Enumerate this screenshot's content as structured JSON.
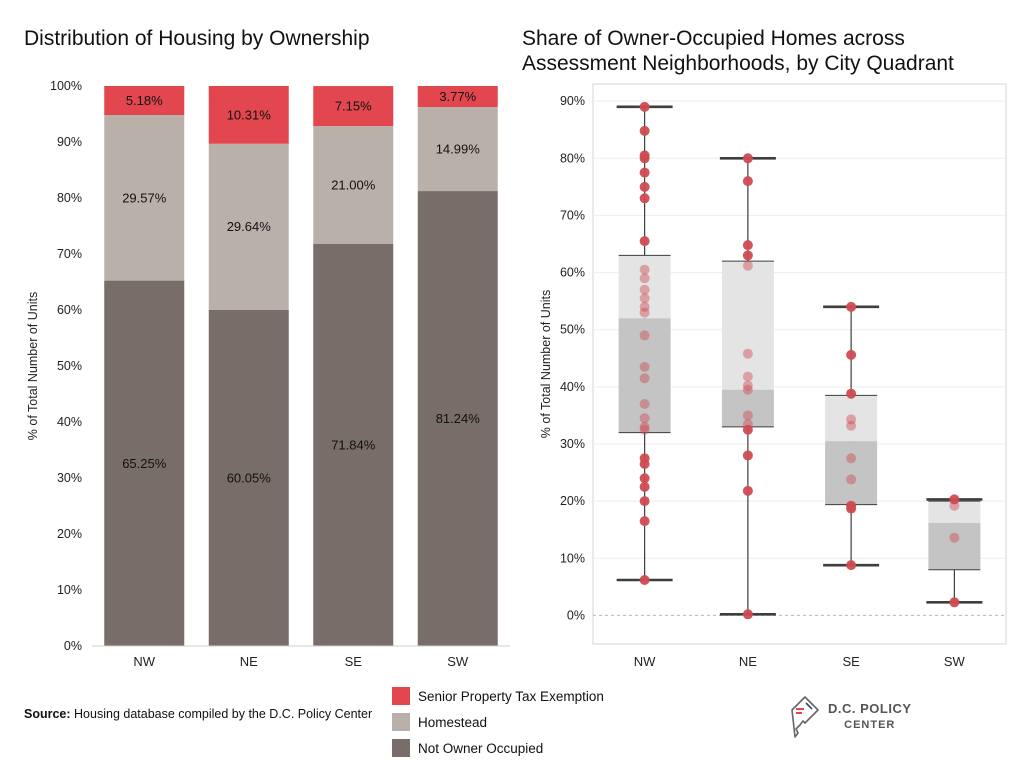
{
  "colors": {
    "senior": "#e2474f",
    "homestead": "#bab0aa",
    "not_owner": "#786d69",
    "dot": "#cf4b51",
    "box_upper": "#e4e4e4",
    "box_lower": "#c4c4c4",
    "whisker": "#3e3e3e"
  },
  "left_chart": {
    "title": "Distribution of Housing by Ownership",
    "chart_data": {
      "type": "bar",
      "stacked": true,
      "categories": [
        "NW",
        "NE",
        "SE",
        "SW"
      ],
      "series": [
        {
          "name": "Not Owner Occupied",
          "values": [
            65.25,
            60.05,
            71.84,
            81.24
          ],
          "labels": [
            "65.25%",
            "60.05%",
            "71.84%",
            "81.24%"
          ]
        },
        {
          "name": "Homestead",
          "values": [
            29.57,
            29.64,
            21.0,
            14.99
          ],
          "labels": [
            "29.57%",
            "29.64%",
            "21.00%",
            "14.99%"
          ]
        },
        {
          "name": "Senior Property Tax Exemption",
          "values": [
            5.18,
            10.31,
            7.15,
            3.77
          ],
          "labels": [
            "5.18%",
            "10.31%",
            "7.15%",
            "3.77%"
          ]
        }
      ],
      "ylabel": "% of Total Number of Units",
      "ylim": [
        0,
        100
      ],
      "yticks": [
        0,
        10,
        20,
        30,
        40,
        50,
        60,
        70,
        80,
        90,
        100
      ],
      "ytick_labels": [
        "0%",
        "10%",
        "20%",
        "30%",
        "40%",
        "50%",
        "60%",
        "70%",
        "80%",
        "90%",
        "100%"
      ]
    }
  },
  "right_chart": {
    "title": "Share of Owner-Occupied Homes across\nAssessment Neighborhoods, by City Quadrant",
    "chart_data": {
      "type": "boxplot",
      "categories": [
        "NW",
        "NE",
        "SE",
        "SW"
      ],
      "ylabel": "% of Total Number of Units",
      "ylim": [
        -5,
        93
      ],
      "yticks": [
        0,
        10,
        20,
        30,
        40,
        50,
        60,
        70,
        80,
        90
      ],
      "ytick_labels": [
        "0%",
        "10%",
        "20%",
        "30%",
        "40%",
        "50%",
        "60%",
        "70%",
        "80%",
        "90%"
      ],
      "boxes": [
        {
          "category": "NW",
          "min": 6.2,
          "q1": 32.0,
          "median": 52.0,
          "q3": 63.0,
          "max": 89.0
        },
        {
          "category": "NE",
          "min": 0.2,
          "q1": 33.0,
          "median": 39.5,
          "q3": 62.0,
          "max": 80.0
        },
        {
          "category": "SE",
          "min": 8.8,
          "q1": 19.4,
          "median": 30.5,
          "q3": 38.5,
          "max": 54.0
        },
        {
          "category": "SW",
          "min": 2.3,
          "q1": 8.0,
          "median": 16.2,
          "q3": 20.0,
          "max": 20.3
        }
      ],
      "points": [
        {
          "category": "NW",
          "values": [
            89,
            84.8,
            80.5,
            80,
            77.5,
            75,
            73,
            65.5,
            60.5,
            59,
            57,
            55.5,
            54,
            53,
            49,
            43.5,
            41.5,
            37,
            34.5,
            33,
            32.5,
            27.5,
            26.5,
            24,
            22.5,
            20,
            16.5,
            6.2
          ]
        },
        {
          "category": "NE",
          "values": [
            80,
            76,
            64.8,
            63,
            61.2,
            45.8,
            41.8,
            40.2,
            39.5,
            35,
            33.5,
            32.5,
            28,
            21.8,
            0.2
          ]
        },
        {
          "category": "SE",
          "values": [
            54,
            45.6,
            38.8,
            34.3,
            33.2,
            27.5,
            23.8,
            19.2,
            18.7,
            8.8
          ]
        },
        {
          "category": "SW",
          "values": [
            20.3,
            19.2,
            13.6,
            2.3
          ]
        }
      ]
    }
  },
  "source": {
    "label": "Source:",
    "text": "Housing database compiled by the D.C. Policy Center"
  },
  "legend": {
    "items": [
      {
        "label": "Senior Property Tax Exemption",
        "color": "#e2474f"
      },
      {
        "label": "Homestead",
        "color": "#bab0aa"
      },
      {
        "label": "Not Owner Occupied",
        "color": "#786d69"
      }
    ]
  },
  "logo": {
    "line1": "D.C. POLICY",
    "line2": "CENTER",
    "icon": "dc-map-icon"
  }
}
